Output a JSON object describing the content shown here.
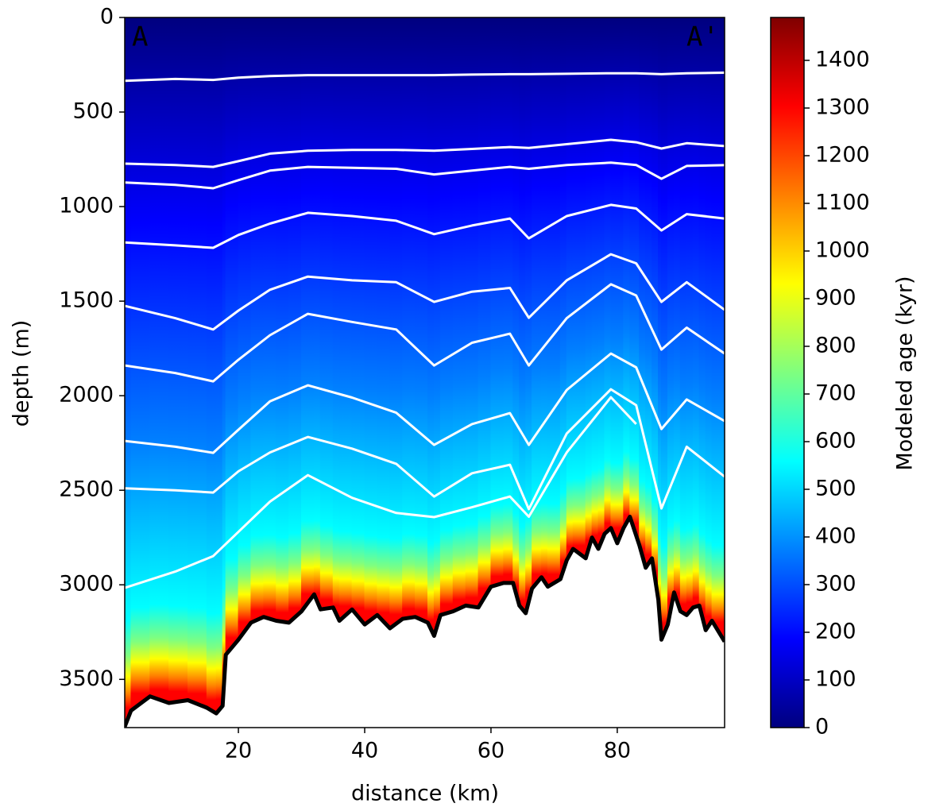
{
  "chart_data": {
    "type": "section",
    "xlabel": "distance (km)",
    "ylabel": "depth (m)",
    "colorbar_label": "Modeled age (kyr)",
    "annotations": [
      "A",
      "A'"
    ],
    "annotation_color": "#e00000",
    "xlim": [
      2,
      97
    ],
    "ylim": [
      3755,
      0
    ],
    "xticks": [
      20,
      40,
      60,
      80
    ],
    "yticks": [
      0,
      500,
      1000,
      1500,
      2000,
      2500,
      3000,
      3500
    ],
    "clim": [
      0,
      1490
    ],
    "cticks": [
      0,
      100,
      200,
      300,
      400,
      500,
      600,
      700,
      800,
      900,
      1000,
      1100,
      1200,
      1300,
      1400
    ],
    "colormap": [
      "#00007f",
      "#0000ff",
      "#007fff",
      "#00ffff",
      "#7fff7f",
      "#ffff00",
      "#ff7f00",
      "#ff0000",
      "#7f0000"
    ],
    "bed": {
      "color": "#000000",
      "x": [
        2,
        3,
        6,
        9,
        12,
        15,
        16.5,
        17.5,
        18,
        20,
        22,
        24,
        26,
        28,
        30,
        32,
        33,
        35,
        36,
        38,
        40,
        42,
        44,
        46,
        48,
        50,
        51,
        52,
        54,
        56,
        58,
        60,
        62,
        63.5,
        64.5,
        65.5,
        66.5,
        68,
        69,
        71,
        72,
        73,
        75,
        76,
        77,
        78,
        79,
        80,
        81,
        82,
        83.5,
        84.5,
        85.5,
        86.5,
        87,
        88,
        89,
        90,
        91,
        92,
        93,
        94,
        95,
        97
      ],
      "depth": [
        3750,
        3665,
        3590,
        3625,
        3610,
        3650,
        3680,
        3640,
        3370,
        3290,
        3200,
        3170,
        3190,
        3200,
        3140,
        3050,
        3130,
        3120,
        3190,
        3130,
        3210,
        3160,
        3230,
        3180,
        3170,
        3200,
        3270,
        3160,
        3140,
        3110,
        3120,
        3010,
        2990,
        2990,
        3110,
        3150,
        3020,
        2960,
        3010,
        2970,
        2870,
        2810,
        2860,
        2750,
        2810,
        2730,
        2700,
        2780,
        2700,
        2640,
        2790,
        2910,
        2860,
        3080,
        3290,
        3210,
        3040,
        3140,
        3160,
        3120,
        3110,
        3240,
        3190,
        3300
      ]
    },
    "isochrone_color": "#ffffff",
    "isochrone_x": [
      2,
      10,
      16,
      20,
      25,
      31,
      38,
      45,
      51,
      57,
      63,
      66,
      72,
      79,
      83,
      87,
      91,
      97
    ],
    "isochrones": [
      [
        335,
        325,
        330,
        318,
        310,
        305,
        305,
        305,
        305,
        302,
        300,
        300,
        298,
        295,
        295,
        300,
        295,
        292
      ],
      [
        773,
        780,
        790,
        760,
        720,
        705,
        700,
        700,
        705,
        695,
        685,
        690,
        670,
        647,
        660,
        693,
        665,
        680
      ],
      [
        873,
        885,
        903,
        860,
        810,
        790,
        795,
        800,
        830,
        810,
        790,
        800,
        780,
        768,
        780,
        853,
        785,
        781
      ],
      [
        1190,
        1205,
        1218,
        1150,
        1090,
        1033,
        1050,
        1075,
        1146,
        1100,
        1063,
        1168,
        1050,
        991,
        1010,
        1126,
        1040,
        1063
      ],
      [
        1525,
        1590,
        1650,
        1550,
        1440,
        1370,
        1390,
        1400,
        1504,
        1450,
        1430,
        1588,
        1390,
        1252,
        1300,
        1504,
        1400,
        1546
      ],
      [
        1840,
        1880,
        1924,
        1810,
        1680,
        1567,
        1610,
        1650,
        1840,
        1720,
        1672,
        1840,
        1590,
        1411,
        1470,
        1756,
        1640,
        1777
      ],
      [
        2239,
        2270,
        2302,
        2180,
        2030,
        1945,
        2010,
        2090,
        2260,
        2150,
        2092,
        2260,
        1970,
        1777,
        1850,
        2176,
        2020,
        2134
      ],
      [
        2490,
        2500,
        2512,
        2400,
        2300,
        2218,
        2280,
        2360,
        2533,
        2410,
        2365,
        2600,
        2200,
        1966,
        2050,
        2596,
        2270,
        2428
      ],
      [
        3016,
        2930,
        2848,
        2720,
        2560,
        2420,
        2540,
        2620,
        2642,
        2590,
        2533,
        2640,
        2300,
        2008,
        2150,
        null,
        null,
        null
      ]
    ]
  }
}
